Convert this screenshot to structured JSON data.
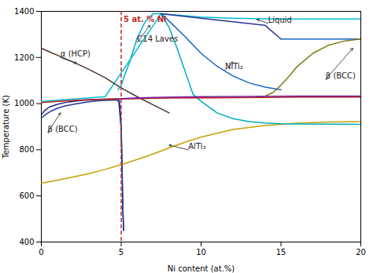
{
  "chart_data": {
    "type": "line",
    "xlabel": "Ni content (at.%)",
    "ylabel": "Temperature (K)",
    "xlim": [
      0,
      20
    ],
    "ylim": [
      400,
      1400
    ],
    "xticks": [
      0,
      5,
      10,
      15,
      20
    ],
    "yticks": [
      400,
      600,
      800,
      1000,
      1200,
      1400
    ],
    "series": [
      {
        "color": "#00bcd4",
        "x": [
          0,
          4,
          7.5,
          10,
          12,
          14,
          15,
          16,
          17,
          18,
          19,
          20
        ],
        "values": [
          1010,
          1030,
          1390,
          1375,
          1370,
          1368,
          1367,
          1367,
          1367,
          1367,
          1367,
          1367
        ]
      },
      {
        "color": "#4e342e",
        "x": [
          0,
          0.5,
          1,
          2,
          3,
          4,
          5,
          6,
          7,
          8
        ],
        "values": [
          1240,
          1225,
          1210,
          1180,
          1148,
          1112,
          1068,
          1030,
          995,
          960
        ]
      },
      {
        "color": "#1a237e",
        "x": [
          0.05,
          0.2,
          0.5,
          1.0,
          1.5,
          2.0,
          2.5,
          3.0,
          3.5,
          4.0,
          4.5,
          4.8,
          4.9,
          5.0,
          5.05,
          5.1,
          5.15
        ],
        "values": [
          955,
          970,
          985,
          997,
          1005,
          1010,
          1014,
          1016,
          1018,
          1019,
          1020,
          1020,
          1010,
          900,
          750,
          560,
          450
        ]
      },
      {
        "color": "#283593",
        "x": [
          0.05,
          0.3,
          0.6,
          1.0,
          1.5,
          2.0,
          2.5,
          3.0,
          3.5,
          4.0,
          4.5,
          4.7,
          4.85,
          5.0,
          5.05,
          5.1,
          5.15
        ],
        "values": [
          940,
          955,
          967,
          980,
          990,
          997,
          1003,
          1008,
          1012,
          1014,
          1016,
          1016,
          1008,
          890,
          730,
          540,
          450
        ]
      },
      {
        "color": "#c8a000",
        "x": [
          0,
          1,
          2,
          3,
          4,
          5,
          6,
          7,
          8,
          9,
          10,
          12,
          14,
          16,
          18,
          20
        ],
        "values": [
          655,
          668,
          682,
          697,
          715,
          735,
          758,
          782,
          808,
          833,
          855,
          888,
          905,
          915,
          920,
          922
        ]
      },
      {
        "color": "#00acc1",
        "x": [
          4.8,
          5.0,
          5.2,
          5.5,
          5.8,
          6.0,
          6.5,
          7.0,
          7.5
        ],
        "values": [
          1060,
          1080,
          1120,
          1175,
          1240,
          1285,
          1355,
          1390,
          1390
        ]
      },
      {
        "color": "#00acc1",
        "x": [
          7.5,
          8.0,
          8.5,
          9.0,
          9.5,
          10.0,
          11.0,
          12.0,
          13.0,
          14.0,
          15.0,
          16.0,
          17.0,
          18.0,
          19.0,
          20.0
        ],
        "values": [
          1390,
          1330,
          1240,
          1140,
          1040,
          1010,
          960,
          935,
          922,
          916,
          913,
          912,
          911,
          911,
          911,
          910
        ]
      },
      {
        "color": "#1565c0",
        "x": [
          7.5,
          8.0,
          9.0,
          10.0,
          11.0,
          12.0,
          13.0,
          14.0,
          15.0
        ],
        "values": [
          1390,
          1358,
          1290,
          1218,
          1162,
          1120,
          1090,
          1072,
          1060
        ]
      },
      {
        "color": "#283593",
        "x": [
          7.5,
          10.0,
          12.0,
          14.0,
          15.0
        ],
        "values": [
          1390,
          1370,
          1355,
          1340,
          1280
        ]
      },
      {
        "color": "#1565c0",
        "x": [
          15.0,
          20.0
        ],
        "values": [
          1280,
          1280
        ]
      },
      {
        "color": "#827717",
        "x": [
          13.5,
          14.0,
          14.5,
          15.0,
          15.5,
          16.0,
          17.0,
          18.0,
          19.0,
          20.0
        ],
        "values": [
          1028,
          1032,
          1048,
          1080,
          1118,
          1160,
          1218,
          1254,
          1272,
          1280
        ]
      },
      {
        "color": "#b71c1c",
        "x": [
          0,
          1,
          2,
          3,
          4,
          5,
          6,
          7,
          8,
          9,
          10,
          12,
          14,
          16,
          18,
          20
        ],
        "values": [
          1005,
          1010,
          1014,
          1017,
          1019,
          1020,
          1022,
          1023,
          1024,
          1025,
          1025,
          1026,
          1027,
          1028,
          1028,
          1028
        ]
      },
      {
        "color": "#7b1fa2",
        "x": [
          4.8,
          5.0,
          6.0,
          7.0,
          8.0,
          9.0,
          10.0,
          12.0,
          14.0,
          16.0,
          18.0,
          20.0
        ],
        "values": [
          1020,
          1022,
          1025,
          1027,
          1028,
          1029,
          1030,
          1031,
          1032,
          1033,
          1033,
          1033
        ]
      }
    ],
    "vlines": [
      {
        "x": 5,
        "text": "5 at. % Ni",
        "color": "#c62828",
        "line_style": "dashed"
      }
    ],
    "annotations": [
      {
        "text": "α (HCP)",
        "xy": [
          2.2,
          1175
        ],
        "xytext": [
          1.2,
          1200
        ],
        "color": "#222222"
      },
      {
        "text": "β (BCC)",
        "xy": [
          1.2,
          960
        ],
        "xytext": [
          0.4,
          875
        ],
        "color": "#222222"
      },
      {
        "text": "C14 Laves",
        "xy": [
          6.8,
          1340
        ],
        "xytext": [
          6.0,
          1265
        ],
        "color": "#222222"
      },
      {
        "text": "NiTi₂",
        "xy": [
          12.0,
          1180
        ],
        "xytext": [
          11.5,
          1145
        ],
        "color": "#222222"
      },
      {
        "text": "β (BCC)",
        "xy": [
          19.5,
          1240
        ],
        "xytext": [
          17.8,
          1105
        ],
        "color": "#222222"
      },
      {
        "text": "AlTi₃",
        "xy": [
          8.0,
          820
        ],
        "xytext": [
          9.2,
          800
        ],
        "color": "#222222"
      },
      {
        "text": "Liquid",
        "xy": [
          13.5,
          1365
        ],
        "xytext": [
          14.2,
          1348
        ],
        "color": "#222222"
      }
    ]
  }
}
